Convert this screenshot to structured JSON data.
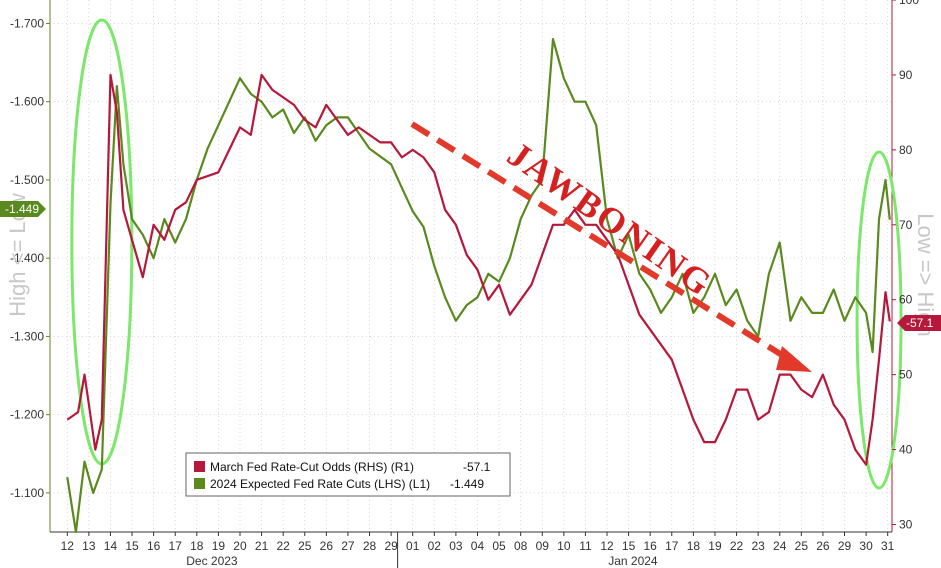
{
  "chart_data": {
    "type": "line",
    "x_day_labels": [
      "12",
      "13",
      "14",
      "15",
      "16",
      "17",
      "18",
      "19",
      "20",
      "21",
      "22",
      "25",
      "26",
      "27",
      "28",
      "29",
      "01",
      "02",
      "03",
      "04",
      "05",
      "08",
      "09",
      "10",
      "11",
      "12",
      "15",
      "16",
      "17",
      "18",
      "19",
      "22",
      "23",
      "24",
      "25",
      "26",
      "29",
      "30",
      "31"
    ],
    "month_labels": [
      "Dec 2023",
      "Jan 2024"
    ],
    "left_axis": {
      "title": "High <= Low",
      "ticks": [
        "-1.700",
        "-1.600",
        "-1.500",
        "-1.400",
        "-1.300",
        "-1.200",
        "-1.100"
      ],
      "values": [
        -1.7,
        -1.6,
        -1.5,
        -1.4,
        -1.3,
        -1.2,
        -1.1
      ],
      "ylim": [
        -1.05,
        -1.73
      ]
    },
    "right_axis": {
      "title": "Low => High",
      "ticks": [
        "100",
        "90",
        "80",
        "70",
        "60",
        "50",
        "40",
        "30"
      ],
      "values": [
        100,
        90,
        80,
        70,
        60,
        50,
        40,
        30
      ],
      "ylim": [
        29,
        100
      ]
    },
    "series": [
      {
        "name": "March Fed Rate-Cut Odds (RHS) (R1)",
        "axis": "right",
        "color": "#b5183a",
        "last": "-57.1",
        "tag": "-57.1",
        "points": [
          [
            0,
            44
          ],
          [
            0.5,
            45
          ],
          [
            0.8,
            50
          ],
          [
            1,
            46
          ],
          [
            1.3,
            40
          ],
          [
            1.6,
            44
          ],
          [
            2,
            90
          ],
          [
            2.3,
            85
          ],
          [
            2.6,
            72
          ],
          [
            3,
            68
          ],
          [
            3.5,
            63
          ],
          [
            4,
            70
          ],
          [
            4.5,
            68
          ],
          [
            5,
            72
          ],
          [
            5.5,
            73
          ],
          [
            6,
            76
          ],
          [
            7,
            77
          ],
          [
            7.5,
            80
          ],
          [
            8,
            83
          ],
          [
            8.5,
            82
          ],
          [
            9,
            90
          ],
          [
            9.5,
            88
          ],
          [
            10,
            87
          ],
          [
            10.5,
            86
          ],
          [
            11,
            84
          ],
          [
            11.5,
            83
          ],
          [
            12,
            86
          ],
          [
            12.5,
            84
          ],
          [
            13,
            82
          ],
          [
            13.5,
            83
          ],
          [
            14,
            82
          ],
          [
            14.5,
            81
          ],
          [
            15,
            81
          ],
          [
            15.5,
            79
          ],
          [
            16,
            80
          ],
          [
            16.5,
            79
          ],
          [
            17,
            77
          ],
          [
            17.5,
            72
          ],
          [
            18,
            70
          ],
          [
            18.5,
            66
          ],
          [
            19,
            64
          ],
          [
            19.5,
            60
          ],
          [
            20,
            62
          ],
          [
            20.5,
            58
          ],
          [
            21,
            60
          ],
          [
            21.5,
            62
          ],
          [
            22,
            66
          ],
          [
            22.5,
            70
          ],
          [
            23,
            70
          ],
          [
            23.5,
            72
          ],
          [
            24,
            70
          ],
          [
            24.5,
            70
          ],
          [
            25,
            68
          ],
          [
            25.5,
            66
          ],
          [
            26,
            62
          ],
          [
            26.5,
            58
          ],
          [
            27,
            56
          ],
          [
            27.5,
            54
          ],
          [
            28,
            52
          ],
          [
            28.5,
            48
          ],
          [
            29,
            44
          ],
          [
            29.5,
            41
          ],
          [
            30,
            41
          ],
          [
            30.5,
            44
          ],
          [
            31,
            48
          ],
          [
            31.5,
            48
          ],
          [
            32,
            44
          ],
          [
            32.5,
            45
          ],
          [
            33,
            50
          ],
          [
            33.5,
            50
          ],
          [
            34,
            48
          ],
          [
            34.5,
            47
          ],
          [
            35,
            50
          ],
          [
            35.5,
            46
          ],
          [
            36,
            44
          ],
          [
            36.5,
            40
          ],
          [
            37,
            38
          ],
          [
            37.3,
            44
          ],
          [
            37.6,
            52
          ],
          [
            37.9,
            61
          ],
          [
            38.1,
            57.1
          ]
        ]
      },
      {
        "name": "2024 Expected Fed Rate Cuts (LHS) (L1)",
        "axis": "left",
        "color": "#5a8a1e",
        "last": "-1.449",
        "tag": "-1.449",
        "points": [
          [
            0,
            -1.12
          ],
          [
            0.4,
            -1.05
          ],
          [
            0.8,
            -1.14
          ],
          [
            1.2,
            -1.1
          ],
          [
            1.6,
            -1.13
          ],
          [
            2,
            -1.47
          ],
          [
            2.3,
            -1.62
          ],
          [
            2.6,
            -1.52
          ],
          [
            3,
            -1.45
          ],
          [
            3.5,
            -1.43
          ],
          [
            4,
            -1.4
          ],
          [
            4.5,
            -1.45
          ],
          [
            5,
            -1.42
          ],
          [
            5.5,
            -1.45
          ],
          [
            6,
            -1.5
          ],
          [
            6.5,
            -1.54
          ],
          [
            7,
            -1.57
          ],
          [
            7.5,
            -1.6
          ],
          [
            8,
            -1.63
          ],
          [
            8.5,
            -1.61
          ],
          [
            9,
            -1.6
          ],
          [
            9.5,
            -1.58
          ],
          [
            10,
            -1.59
          ],
          [
            10.5,
            -1.56
          ],
          [
            11,
            -1.58
          ],
          [
            11.5,
            -1.55
          ],
          [
            12,
            -1.57
          ],
          [
            12.5,
            -1.58
          ],
          [
            13,
            -1.58
          ],
          [
            13.5,
            -1.56
          ],
          [
            14,
            -1.54
          ],
          [
            14.5,
            -1.53
          ],
          [
            15,
            -1.52
          ],
          [
            15.5,
            -1.49
          ],
          [
            16,
            -1.46
          ],
          [
            16.5,
            -1.44
          ],
          [
            17,
            -1.39
          ],
          [
            17.5,
            -1.35
          ],
          [
            18,
            -1.32
          ],
          [
            18.5,
            -1.34
          ],
          [
            19,
            -1.35
          ],
          [
            19.5,
            -1.38
          ],
          [
            20,
            -1.37
          ],
          [
            20.5,
            -1.4
          ],
          [
            21,
            -1.45
          ],
          [
            21.5,
            -1.48
          ],
          [
            22,
            -1.5
          ],
          [
            22.5,
            -1.68
          ],
          [
            23,
            -1.63
          ],
          [
            23.5,
            -1.6
          ],
          [
            24,
            -1.6
          ],
          [
            24.5,
            -1.57
          ],
          [
            25,
            -1.45
          ],
          [
            25.5,
            -1.4
          ],
          [
            26,
            -1.43
          ],
          [
            26.5,
            -1.38
          ],
          [
            27,
            -1.36
          ],
          [
            27.5,
            -1.33
          ],
          [
            28,
            -1.35
          ],
          [
            28.5,
            -1.38
          ],
          [
            29,
            -1.33
          ],
          [
            29.5,
            -1.35
          ],
          [
            30,
            -1.38
          ],
          [
            30.5,
            -1.34
          ],
          [
            31,
            -1.36
          ],
          [
            31.5,
            -1.32
          ],
          [
            32,
            -1.3
          ],
          [
            32.5,
            -1.38
          ],
          [
            33,
            -1.42
          ],
          [
            33.5,
            -1.32
          ],
          [
            34,
            -1.35
          ],
          [
            34.5,
            -1.33
          ],
          [
            35,
            -1.33
          ],
          [
            35.5,
            -1.36
          ],
          [
            36,
            -1.32
          ],
          [
            36.5,
            -1.35
          ],
          [
            37,
            -1.33
          ],
          [
            37.3,
            -1.28
          ],
          [
            37.6,
            -1.45
          ],
          [
            37.9,
            -1.5
          ],
          [
            38.1,
            -1.449
          ]
        ]
      }
    ],
    "annotation": "JAWBONING",
    "legend_position": "bottom-center",
    "grid": true
  }
}
